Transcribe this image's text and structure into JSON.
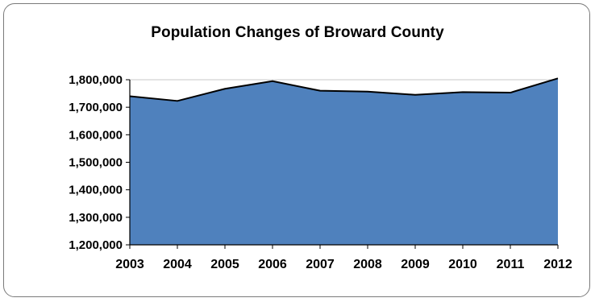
{
  "chart_data": {
    "type": "area",
    "title": "Population Changes of Broward County",
    "xlabel": "",
    "ylabel": "",
    "categories": [
      "2003",
      "2004",
      "2005",
      "2006",
      "2007",
      "2008",
      "2009",
      "2010",
      "2011",
      "2012"
    ],
    "series": [
      {
        "values": [
          1740000,
          1723000,
          1767000,
          1795000,
          1760000,
          1757000,
          1745000,
          1755000,
          1753000,
          1805000
        ]
      }
    ],
    "ylim": [
      1200000,
      1800000
    ],
    "yticks": [
      "1,200,000",
      "1,300,000",
      "1,400,000",
      "1,500,000",
      "1,600,000",
      "1,700,000",
      "1,800,000"
    ],
    "ytick_values": [
      1200000,
      1300000,
      1400000,
      1500000,
      1600000,
      1700000,
      1800000
    ],
    "grid": true,
    "legend": "none",
    "colors": {
      "fill": "#4f81bd",
      "line": "#000000",
      "grid": "#c8c8c8",
      "frame": "#7a7a7a"
    }
  }
}
